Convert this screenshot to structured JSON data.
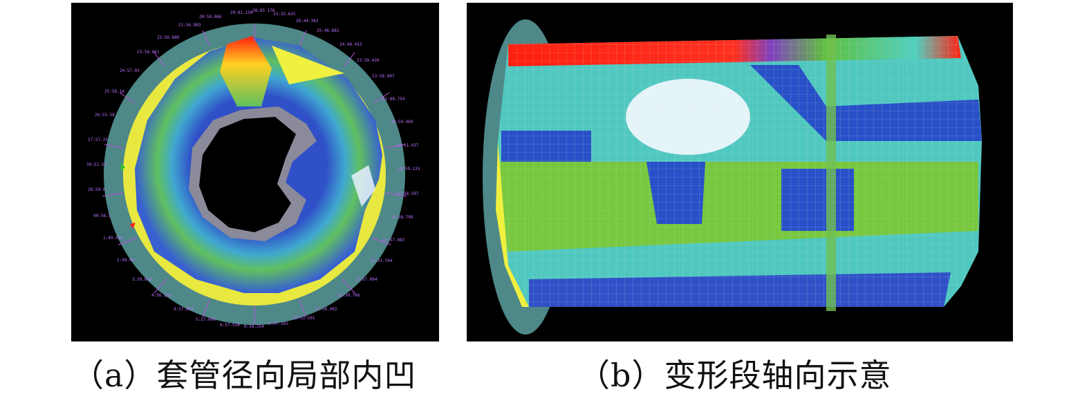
{
  "figure": {
    "panel_a": {
      "caption": "（a）套管径向局部内凹",
      "ring_labels": [
        "20:59.066",
        "20:82.158",
        "28:85.176",
        "23:32.625",
        "26:44.362",
        "25:46.681",
        "24:48.453",
        "23:58.426",
        "23:58.907",
        "21:88.754",
        "20:59.460",
        "19:11.437",
        "18:59.125",
        "17:58.597",
        "16:58.799",
        "15:57.887",
        "14:31.764",
        "13:57.064",
        "12:30.786",
        "11:56.902",
        "10:53.501",
        "9:07.163",
        "8:58.254",
        "6:57.524",
        "5:27.600",
        "4:57.802",
        "4:56.126",
        "3:59.610",
        "2:50.00",
        "1:49.560",
        "40:56.5",
        "28:59.0",
        "30:52.31",
        "27:57.25",
        "26:55.58",
        "25:58.16",
        "24:57.03",
        "23:58.061",
        "22:56.880",
        "21:56.983"
      ],
      "colors": {
        "ring": "#4e8888",
        "dent_highlight": "#f0f040",
        "hot": "#ff2010",
        "cold": "#2040d0"
      }
    },
    "panel_b": {
      "caption": "（b）变形段轴向示意",
      "colors": {
        "end_cap": "#4e8888",
        "hot": "#ff2010",
        "mid": "#50d0c0",
        "low": "#60c040",
        "deep": "#2850c8"
      }
    }
  }
}
